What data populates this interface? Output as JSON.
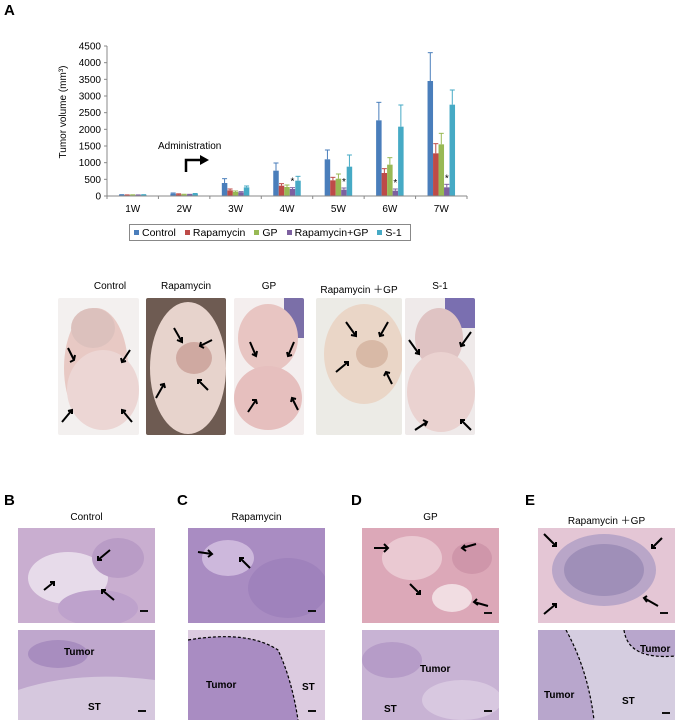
{
  "panel_letters": {
    "a": "A",
    "b": "B",
    "c": "C",
    "d": "D",
    "e": "E"
  },
  "chart_data": {
    "type": "bar",
    "ylabel": "Tumor volume (mm³)",
    "ylim": [
      0,
      4500
    ],
    "yticks": [
      0,
      500,
      1000,
      1500,
      2000,
      2500,
      3000,
      3500,
      4000,
      4500
    ],
    "categories": [
      "1W",
      "2W",
      "3W",
      "4W",
      "5W",
      "6W",
      "7W"
    ],
    "series": [
      {
        "name": "Control",
        "color": "#4a7ebb",
        "values": [
          30,
          70,
          390,
          760,
          1100,
          2270,
          3450
        ],
        "errors": [
          10,
          20,
          130,
          230,
          280,
          540,
          850
        ]
      },
      {
        "name": "Rapamycin",
        "color": "#be4b48",
        "values": [
          25,
          50,
          170,
          310,
          470,
          690,
          1280
        ],
        "errors": [
          8,
          15,
          40,
          60,
          90,
          130,
          290
        ]
      },
      {
        "name": "GP",
        "color": "#98b954",
        "values": [
          28,
          40,
          120,
          270,
          520,
          940,
          1550
        ],
        "errors": [
          8,
          12,
          30,
          60,
          140,
          210,
          330
        ]
      },
      {
        "name": "Rapamycin+GP",
        "color": "#7d60a0",
        "values": [
          25,
          40,
          110,
          210,
          190,
          160,
          260
        ],
        "errors": [
          8,
          10,
          20,
          40,
          50,
          50,
          90
        ]
      },
      {
        "name": "S-1",
        "color": "#46aac5",
        "values": [
          30,
          60,
          260,
          460,
          880,
          2080,
          2740
        ],
        "errors": [
          10,
          15,
          40,
          130,
          350,
          650,
          440
        ]
      }
    ],
    "significance": [
      {
        "category": "4W",
        "series": "Rapamycin+GP",
        "mark": "*"
      },
      {
        "category": "5W",
        "series": "Rapamycin+GP",
        "mark": "*"
      },
      {
        "category": "6W",
        "series": "Rapamycin+GP",
        "mark": "*"
      },
      {
        "category": "7W",
        "series": "Rapamycin+GP",
        "mark": "*"
      }
    ],
    "annotation": "Administration"
  },
  "photos": {
    "labels": [
      "Control",
      "Rapamycin",
      "GP",
      "Rapamycin ＋GP",
      "S-1"
    ]
  },
  "histology": {
    "titles": [
      "Control",
      "Rapamycin",
      "GP",
      "Rapamycin ＋GP"
    ],
    "tumor_label": "Tumor",
    "st_label": "ST"
  }
}
